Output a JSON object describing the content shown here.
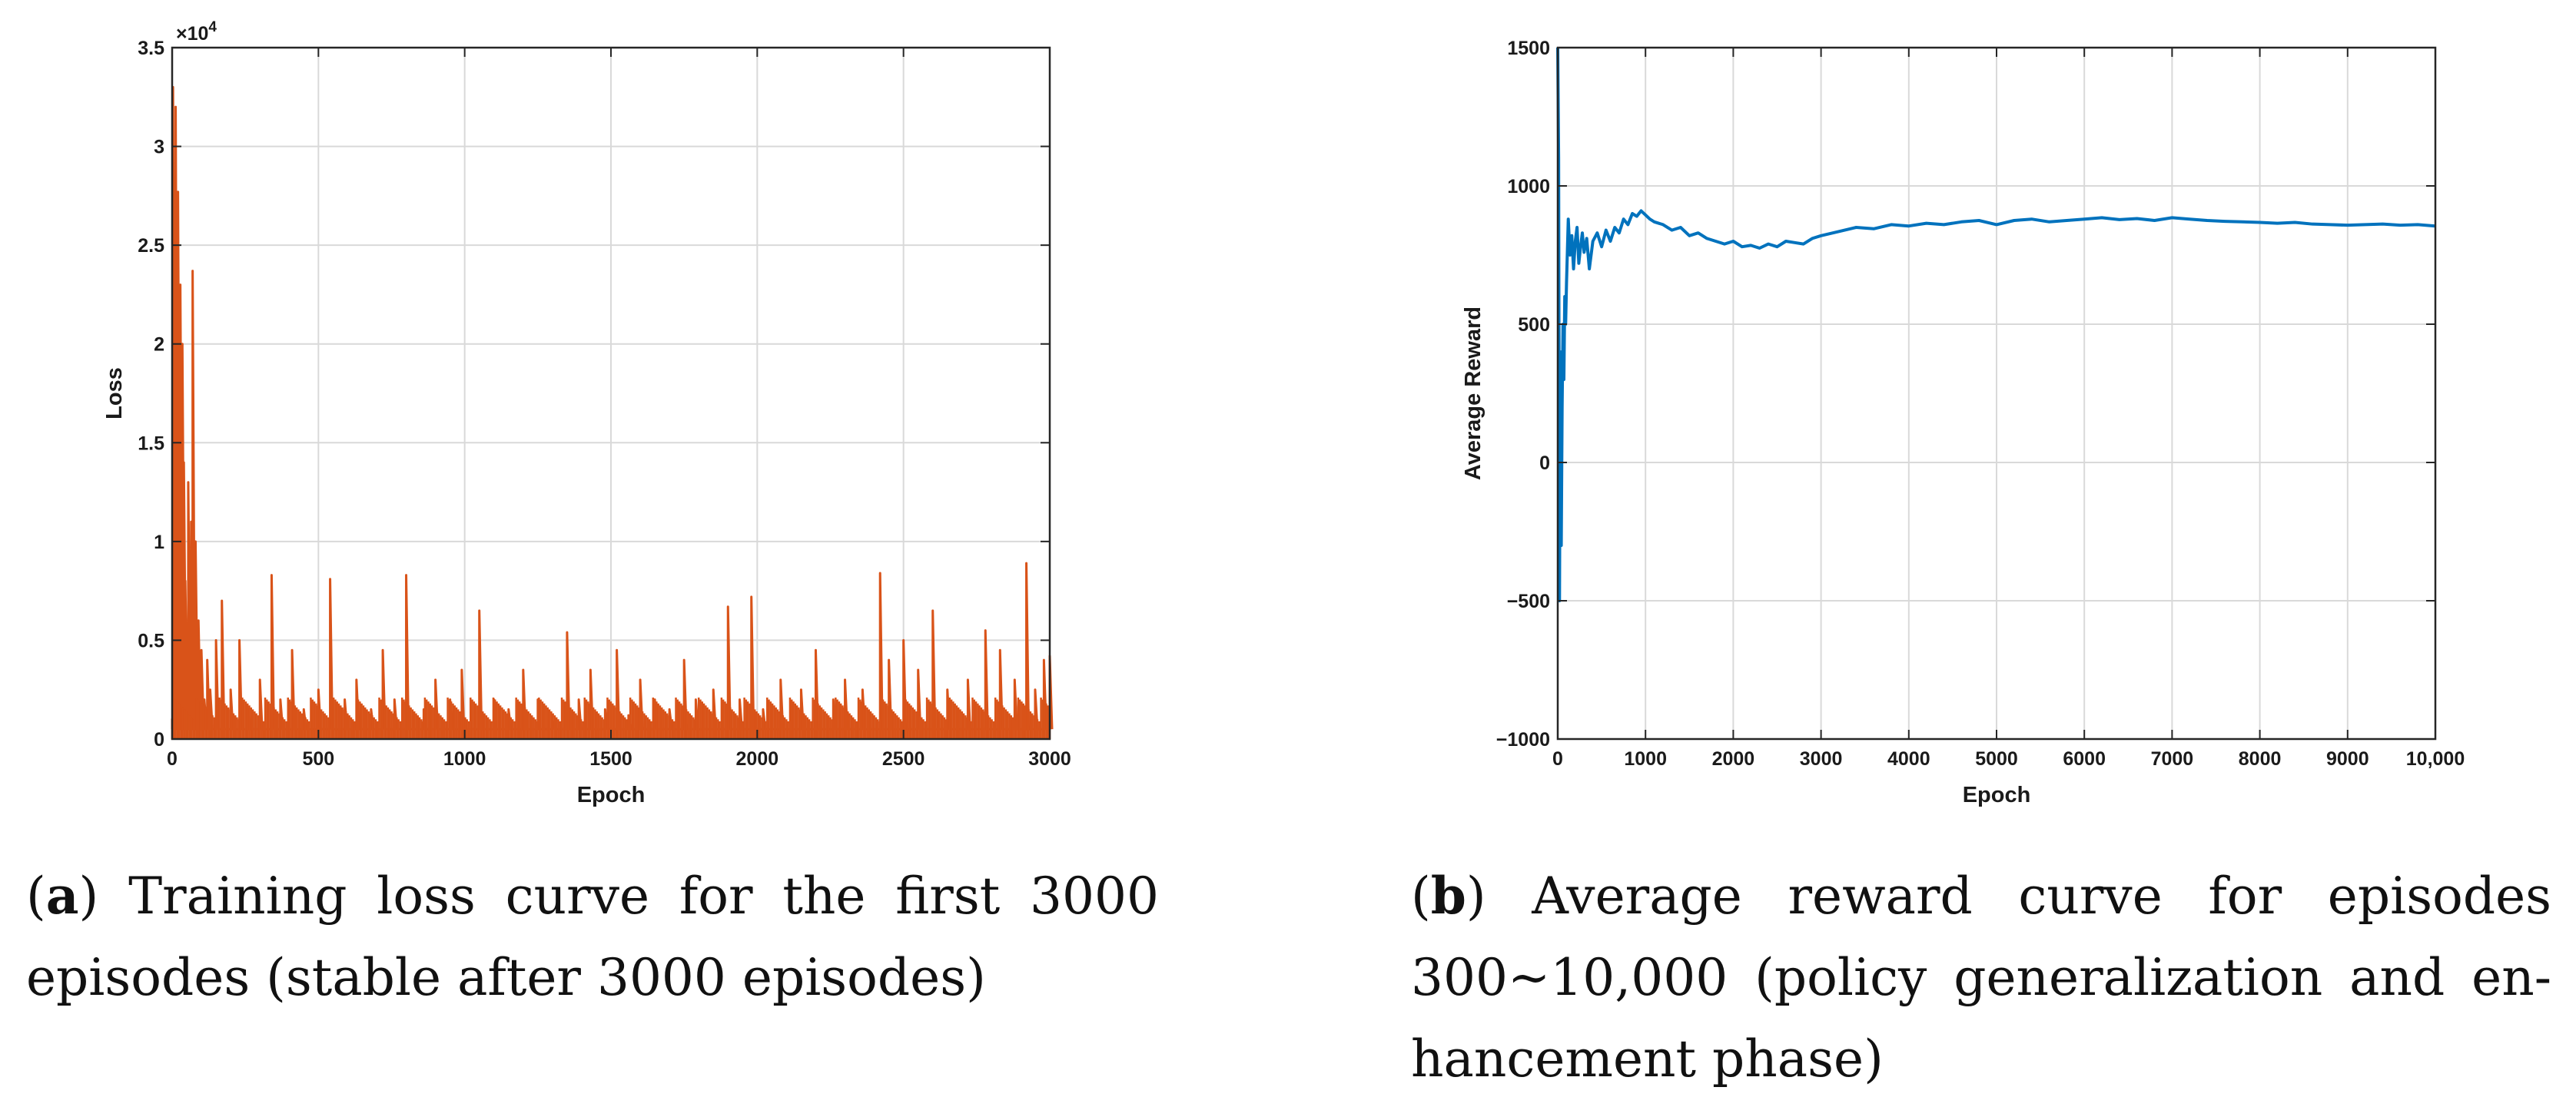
{
  "chart_data": [
    {
      "type": "line",
      "panel": "a",
      "xlabel": "Epoch",
      "ylabel": "Loss",
      "multiplier": "×10",
      "multiplier_exp": "4",
      "xlim": [
        0,
        3000
      ],
      "ylim": [
        0,
        3.5
      ],
      "xticks": [
        0,
        500,
        1000,
        1500,
        2000,
        2500,
        3000
      ],
      "yticks": [
        0,
        0.5,
        1,
        1.5,
        2,
        2.5,
        3,
        3.5
      ],
      "grid": true,
      "color": "#D95319",
      "series": [
        {
          "name": "Loss",
          "baseline": 0.05,
          "x": [
            0,
            3,
            8,
            12,
            15,
            20,
            25,
            28,
            32,
            35,
            40,
            45,
            50,
            55,
            60,
            65,
            70,
            75,
            80,
            85,
            90,
            100,
            110,
            120,
            130,
            150,
            170,
            200,
            230,
            260,
            300,
            340,
            370,
            410,
            450,
            500,
            540,
            590,
            630,
            680,
            720,
            760,
            800,
            860,
            900,
            950,
            990,
            1050,
            1100,
            1150,
            1200,
            1250,
            1300,
            1350,
            1390,
            1430,
            1480,
            1520,
            1560,
            1600,
            1650,
            1700,
            1750,
            1790,
            1850,
            1900,
            1940,
            1980,
            2020,
            2080,
            2150,
            2200,
            2260,
            2300,
            2360,
            2420,
            2450,
            2500,
            2550,
            2600,
            2650,
            2720,
            2780,
            2830,
            2880,
            2920,
            2950,
            2980,
            3000
          ],
          "values": [
            0.1,
            3.3,
            2.5,
            3.2,
            1.5,
            2.77,
            0.4,
            2.3,
            1.8,
            2.0,
            1.4,
            0.8,
            0.5,
            1.3,
            0.4,
            1.1,
            2.37,
            0.3,
            1.0,
            0.5,
            0.6,
            0.45,
            0.2,
            0.4,
            0.25,
            0.5,
            0.7,
            0.25,
            0.5,
            0.15,
            0.3,
            0.83,
            0.2,
            0.45,
            0.15,
            0.25,
            0.81,
            0.2,
            0.3,
            0.15,
            0.45,
            0.2,
            0.83,
            0.15,
            0.3,
            0.2,
            0.35,
            0.65,
            0.2,
            0.15,
            0.35,
            0.2,
            0.1,
            0.54,
            0.2,
            0.35,
            0.15,
            0.45,
            0.12,
            0.3,
            0.2,
            0.15,
            0.4,
            0.2,
            0.25,
            0.67,
            0.2,
            0.72,
            0.15,
            0.3,
            0.25,
            0.45,
            0.2,
            0.3,
            0.25,
            0.84,
            0.4,
            0.5,
            0.35,
            0.65,
            0.25,
            0.3,
            0.55,
            0.45,
            0.3,
            0.89,
            0.25,
            0.4,
            0.42
          ]
        }
      ]
    },
    {
      "type": "line",
      "panel": "b",
      "xlabel": "Epoch",
      "ylabel": "Average Reward",
      "xlim": [
        0,
        10000
      ],
      "ylim": [
        -1000,
        1500
      ],
      "xticks": [
        0,
        1000,
        2000,
        3000,
        4000,
        5000,
        6000,
        7000,
        8000,
        9000,
        10000
      ],
      "xticklabels": [
        "0",
        "1000",
        "2000",
        "3000",
        "4000",
        "5000",
        "6000",
        "7000",
        "8000",
        "9000",
        "10,000"
      ],
      "yticks": [
        -1000,
        -500,
        0,
        500,
        1000,
        1500
      ],
      "yticklabels": [
        "−1000",
        "−500",
        "0",
        "500",
        "1000",
        "1500"
      ],
      "grid": true,
      "color": "#0072BD",
      "series": [
        {
          "name": "Average Reward",
          "x": [
            0,
            10,
            20,
            30,
            40,
            50,
            60,
            70,
            80,
            90,
            100,
            120,
            140,
            160,
            180,
            200,
            220,
            240,
            260,
            280,
            300,
            330,
            360,
            400,
            450,
            500,
            550,
            600,
            650,
            700,
            750,
            800,
            850,
            900,
            950,
            1000,
            1050,
            1100,
            1200,
            1300,
            1400,
            1500,
            1600,
            1700,
            1800,
            1900,
            2000,
            2100,
            2200,
            2300,
            2400,
            2500,
            2600,
            2700,
            2800,
            2900,
            3000,
            3200,
            3400,
            3600,
            3800,
            4000,
            4200,
            4400,
            4600,
            4800,
            5000,
            5200,
            5400,
            5600,
            5800,
            6000,
            6200,
            6400,
            6600,
            6800,
            7000,
            7200,
            7400,
            7600,
            7800,
            8000,
            8200,
            8400,
            8600,
            8800,
            9000,
            9200,
            9400,
            9600,
            9800,
            10000
          ],
          "values": [
            1500,
            1100,
            -500,
            400,
            -300,
            200,
            500,
            300,
            600,
            500,
            650,
            880,
            750,
            820,
            700,
            800,
            850,
            720,
            780,
            830,
            760,
            810,
            700,
            800,
            830,
            780,
            840,
            800,
            850,
            830,
            880,
            860,
            900,
            890,
            910,
            895,
            880,
            870,
            860,
            840,
            850,
            820,
            830,
            810,
            800,
            790,
            800,
            780,
            785,
            775,
            790,
            780,
            800,
            795,
            790,
            810,
            820,
            835,
            850,
            845,
            860,
            855,
            865,
            860,
            870,
            875,
            860,
            875,
            880,
            870,
            875,
            880,
            885,
            878,
            882,
            875,
            885,
            880,
            875,
            872,
            870,
            868,
            865,
            868,
            862,
            860,
            858,
            860,
            862,
            858,
            860,
            855
          ]
        }
      ]
    }
  ],
  "captions": [
    {
      "letter": "a",
      "line1_rest": ") Training loss curve for the first 3000",
      "line2": "episodes (stable after 3000 episodes)"
    },
    {
      "letter": "b",
      "line1_rest": ") Average reward curve for episodes",
      "line2": "300~10,000 (policy generalization and en-",
      "line3": "hancement phase)"
    }
  ]
}
